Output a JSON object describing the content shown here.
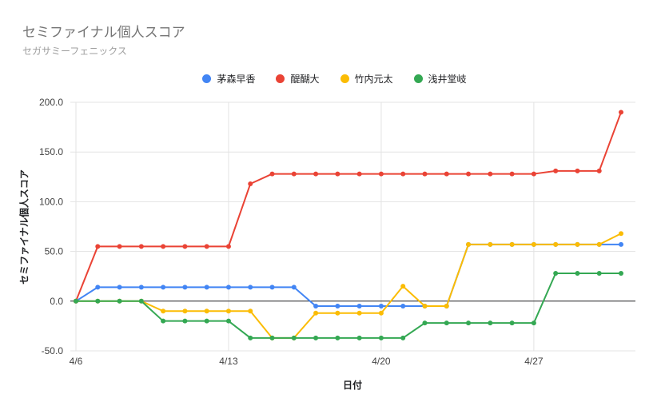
{
  "chart_data": {
    "type": "line",
    "title": "セミファイナル個人スコア",
    "subtitle": "セガサミーフェニックス",
    "xlabel": "日付",
    "ylabel": "セミファイナル個人スコア",
    "ylim": [
      -50,
      200
    ],
    "yticks": [
      200,
      150,
      100,
      50,
      0,
      -50
    ],
    "ytick_labels": [
      "200.0",
      "150.0",
      "100.0",
      "50.0",
      "0.0",
      "-50.0"
    ],
    "xticks": [
      {
        "i": 0,
        "label": "4/6"
      },
      {
        "i": 7,
        "label": "4/13"
      },
      {
        "i": 14,
        "label": "4/20"
      },
      {
        "i": 21,
        "label": "4/27"
      }
    ],
    "grid": true,
    "legend_position": "top",
    "series": [
      {
        "name": "茅森早香",
        "color": "#4285f4",
        "values": [
          0,
          14,
          14,
          14,
          14,
          14,
          14,
          14,
          14,
          14,
          14,
          -5,
          -5,
          -5,
          -5,
          -5,
          -5,
          -5,
          57,
          57,
          57,
          57,
          57,
          57,
          57,
          57
        ]
      },
      {
        "name": "醍醐大",
        "color": "#ea4335",
        "values": [
          0,
          55,
          55,
          55,
          55,
          55,
          55,
          55,
          118,
          128,
          128,
          128,
          128,
          128,
          128,
          128,
          128,
          128,
          128,
          128,
          128,
          128,
          131,
          131,
          131,
          190
        ]
      },
      {
        "name": "竹内元太",
        "color": "#fbbc04",
        "values": [
          0,
          0,
          0,
          0,
          -10,
          -10,
          -10,
          -10,
          -10,
          -37,
          -37,
          -12,
          -12,
          -12,
          -12,
          15,
          -5,
          -5,
          57,
          57,
          57,
          57,
          57,
          57,
          57,
          68
        ]
      },
      {
        "name": "浅井堂岐",
        "color": "#34a853",
        "values": [
          0,
          0,
          0,
          0,
          -20,
          -20,
          -20,
          -20,
          -37,
          -37,
          -37,
          -37,
          -37,
          -37,
          -37,
          -37,
          -22,
          -22,
          -22,
          -22,
          -22,
          -22,
          28,
          28,
          28,
          28
        ]
      }
    ]
  }
}
